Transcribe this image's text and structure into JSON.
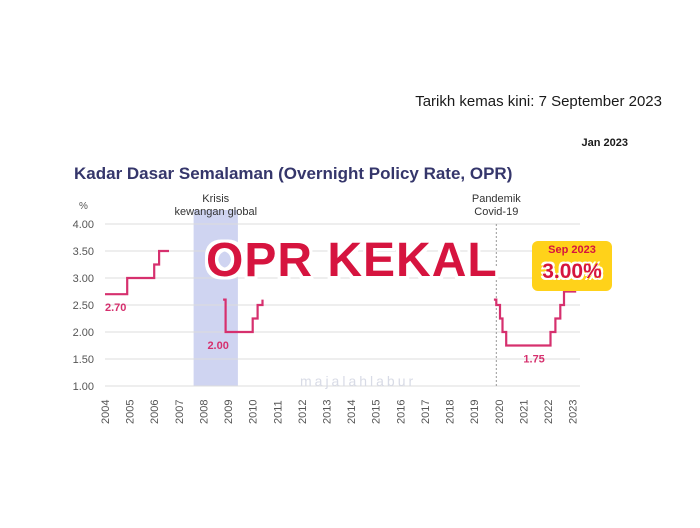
{
  "header": {
    "update_text": "Tarikh kemas kini: 7 September 2023",
    "month_label": "Jan 2023"
  },
  "overlay": {
    "headline": "OPR KEKAL",
    "badge_date": "Sep 2023",
    "badge_value": "3.00%"
  },
  "watermark": "majalahlabur",
  "colors": {
    "line": "#d6306e",
    "title": "#35366b",
    "shade": "#c7cdee",
    "badge": "#ffd21a",
    "headline": "#d6143f"
  },
  "chart_data": {
    "type": "line",
    "title": "Kadar Dasar Semalaman (Overnight Policy Rate, OPR)",
    "ylabel": "%",
    "xlabel": "",
    "ylim": [
      1.0,
      4.0
    ],
    "xlim": [
      2004.0,
      2023.3
    ],
    "yticks": [
      "1.00",
      "1.50",
      "2.00",
      "2.50",
      "3.00",
      "3.50",
      "4.00"
    ],
    "xticks": [
      "2004",
      "2005",
      "2006",
      "2007",
      "2008",
      "2009",
      "2010",
      "2011",
      "2012",
      "2013",
      "2014",
      "2015",
      "2016",
      "2017",
      "2018",
      "2019",
      "2020",
      "2021",
      "2022",
      "2023"
    ],
    "grid": true,
    "series": [
      {
        "segments": [
          [
            [
              2004.0,
              2.7
            ],
            [
              2004.9,
              2.7
            ],
            [
              2004.9,
              3.0
            ],
            [
              2006.0,
              3.0
            ],
            [
              2006.0,
              3.25
            ],
            [
              2006.2,
              3.25
            ],
            [
              2006.2,
              3.5
            ],
            [
              2006.6,
              3.5
            ]
          ],
          [
            [
              2008.8,
              2.6
            ],
            [
              2008.9,
              2.6
            ],
            [
              2008.9,
              2.0
            ],
            [
              2010.0,
              2.0
            ],
            [
              2010.0,
              2.25
            ],
            [
              2010.2,
              2.25
            ],
            [
              2010.2,
              2.5
            ],
            [
              2010.4,
              2.5
            ],
            [
              2010.4,
              2.6
            ]
          ],
          [
            [
              2019.8,
              2.6
            ],
            [
              2019.9,
              2.6
            ],
            [
              2019.9,
              2.5
            ],
            [
              2020.05,
              2.5
            ],
            [
              2020.05,
              2.25
            ],
            [
              2020.15,
              2.25
            ],
            [
              2020.15,
              2.0
            ],
            [
              2020.3,
              2.0
            ],
            [
              2020.3,
              1.75
            ],
            [
              2022.1,
              1.75
            ],
            [
              2022.1,
              2.0
            ],
            [
              2022.3,
              2.0
            ],
            [
              2022.3,
              2.25
            ],
            [
              2022.5,
              2.25
            ],
            [
              2022.5,
              2.5
            ],
            [
              2022.65,
              2.5
            ],
            [
              2022.65,
              2.75
            ],
            [
              2023.1,
              2.75
            ],
            [
              2023.1,
              2.9
            ]
          ]
        ]
      }
    ],
    "annotations": [
      {
        "x": 2004.0,
        "y": 2.7,
        "text": "2.70"
      },
      {
        "x": 2008.0,
        "y": 2.0,
        "text": "2.00"
      },
      {
        "x": 2021.0,
        "y": 1.75,
        "text": "1.75"
      }
    ],
    "shaded_regions": [
      {
        "from": 2007.6,
        "to": 2009.4,
        "label_lines": [
          "Krisis",
          "kewangan global"
        ]
      }
    ],
    "markers": [
      {
        "x": 2019.9,
        "label_lines": [
          "Pandemik",
          "Covid-19"
        ]
      }
    ]
  }
}
